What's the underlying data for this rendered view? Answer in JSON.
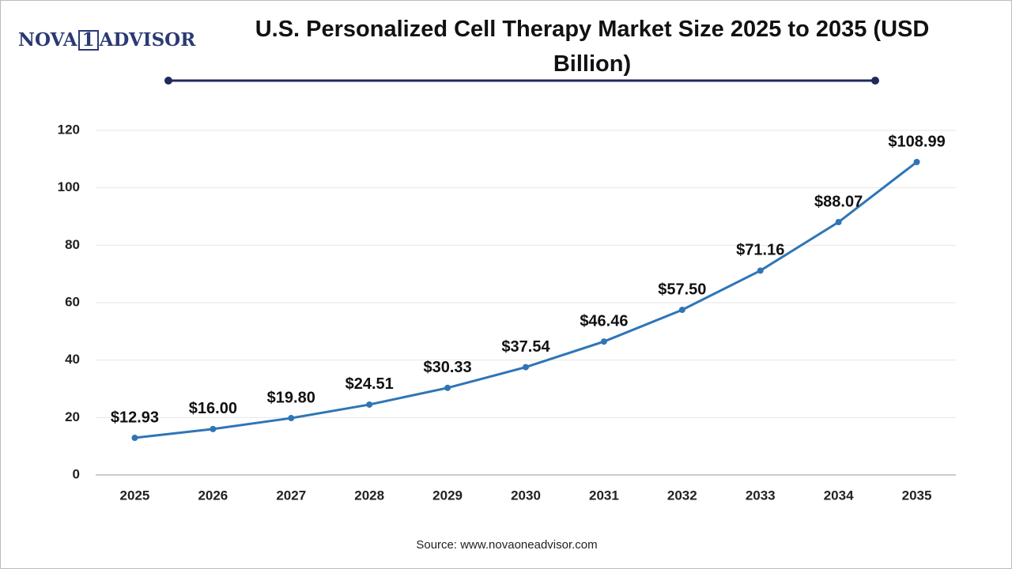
{
  "logo": {
    "parts": [
      "NOVA",
      "1",
      "ADVISOR"
    ]
  },
  "chart_data": {
    "type": "line",
    "title": "U.S. Personalized Cell Therapy Market Size 2025 to 2035 (USD Billion)",
    "source": "Source: www.novaoneadvisor.com",
    "categories": [
      "2025",
      "2026",
      "2027",
      "2028",
      "2029",
      "2030",
      "2031",
      "2032",
      "2033",
      "2034",
      "2035"
    ],
    "values": [
      12.93,
      16.0,
      19.8,
      24.51,
      30.33,
      37.54,
      46.46,
      57.5,
      71.16,
      88.07,
      108.99
    ],
    "value_labels": [
      "$12.93",
      "$16.00",
      "$19.80",
      "$24.51",
      "$30.33",
      "$37.54",
      "$46.46",
      "$57.50",
      "$71.16",
      "$88.07",
      "$108.99"
    ],
    "color": "#2e75b6",
    "ylim": [
      0,
      120
    ],
    "yticks": [
      0,
      20,
      40,
      60,
      80,
      100,
      120
    ],
    "grid": true
  }
}
